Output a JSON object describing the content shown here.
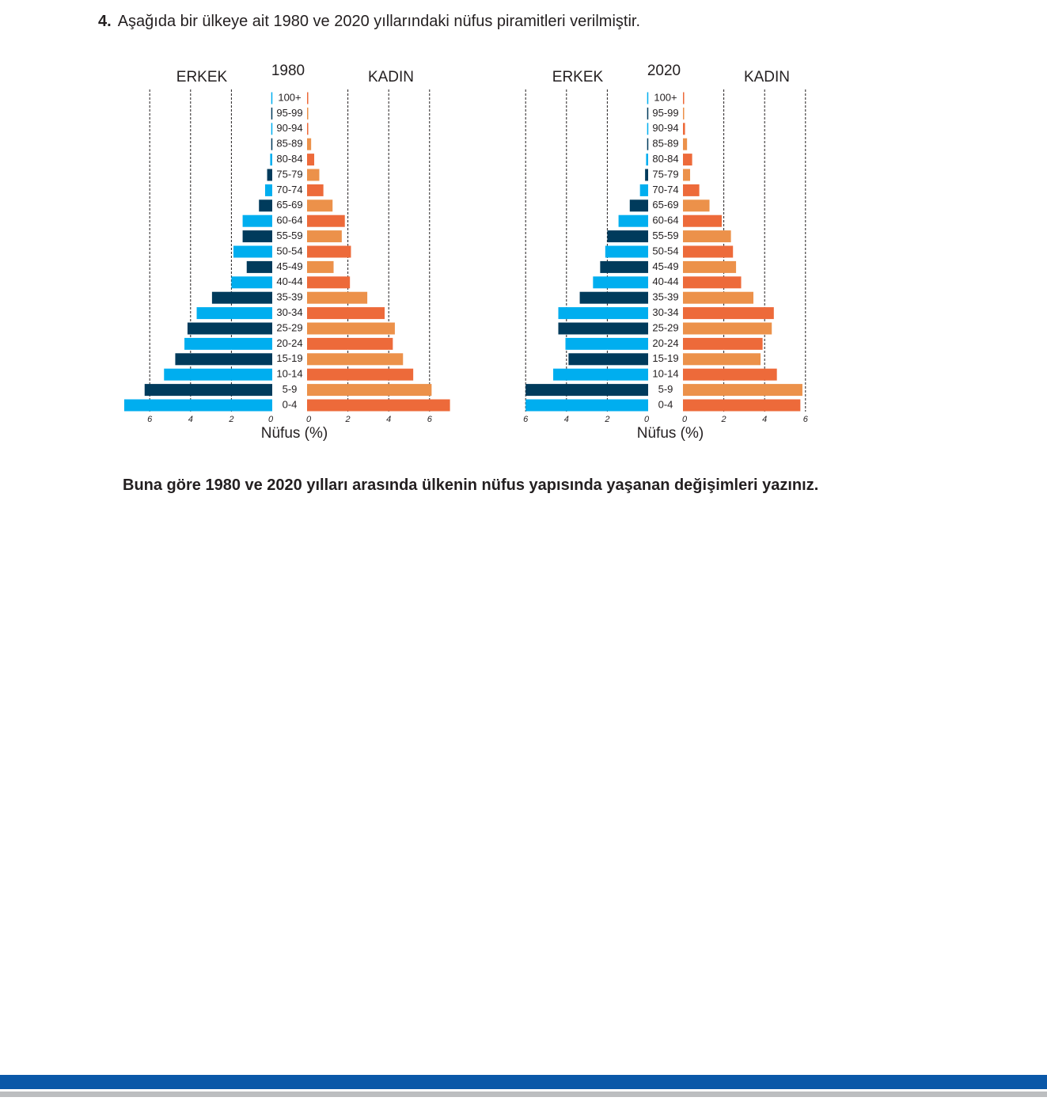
{
  "header": {
    "number": "4.",
    "text": "Aşağıda bir ülkeye ait 1980 ve 2020 yıllarındaki nüfus piramitleri verilmiştir."
  },
  "chart_data": [
    {
      "type": "pyramid",
      "title": "1980",
      "xlabel": "Nüfus (%)",
      "categories": [
        "100+",
        "95-99",
        "90-94",
        "85-89",
        "80-84",
        "75-79",
        "70-74",
        "65-69",
        "60-64",
        "55-59",
        "50-54",
        "45-49",
        "40-44",
        "35-39",
        "30-34",
        "25-29",
        "20-24",
        "15-19",
        "10-14",
        "5-9",
        "0-4"
      ],
      "series": [
        {
          "name": "ERKEK",
          "colors": [
            "#00aeef",
            "#003b5c"
          ],
          "values": [
            0.05,
            0.05,
            0.05,
            0.05,
            0.1,
            0.25,
            0.35,
            0.65,
            1.45,
            1.45,
            1.9,
            1.25,
            2.0,
            2.95,
            3.7,
            4.15,
            4.3,
            4.75,
            5.3,
            6.25,
            7.25
          ]
        },
        {
          "name": "KADIN",
          "colors": [
            "#ed6a3a",
            "#ec914a"
          ],
          "values": [
            0.05,
            0.05,
            0.05,
            0.2,
            0.35,
            0.6,
            0.8,
            1.25,
            1.85,
            1.7,
            2.15,
            1.3,
            2.1,
            2.95,
            3.8,
            4.3,
            4.2,
            4.7,
            5.2,
            6.1,
            7.0
          ]
        }
      ],
      "xlim": [
        0,
        7.5
      ],
      "xticks": [
        0,
        2,
        4,
        6
      ],
      "grid": true
    },
    {
      "type": "pyramid",
      "title": "2020",
      "xlabel": "Nüfus (%)",
      "categories": [
        "100+",
        "95-99",
        "90-94",
        "85-89",
        "80-84",
        "75-79",
        "70-74",
        "65-69",
        "60-64",
        "55-59",
        "50-54",
        "45-49",
        "40-44",
        "35-39",
        "30-34",
        "25-29",
        "20-24",
        "15-19",
        "10-14",
        "5-9",
        "0-4"
      ],
      "series": [
        {
          "name": "ERKEK",
          "colors": [
            "#00aeef",
            "#003b5c"
          ],
          "values": [
            0.05,
            0.05,
            0.05,
            0.05,
            0.1,
            0.15,
            0.4,
            0.9,
            1.45,
            2.0,
            2.1,
            2.35,
            2.7,
            3.35,
            4.4,
            4.4,
            4.05,
            3.9,
            4.65,
            6.0,
            6.0
          ]
        },
        {
          "name": "KADIN",
          "colors": [
            "#ed6a3a",
            "#ec914a"
          ],
          "values": [
            0.05,
            0.05,
            0.1,
            0.2,
            0.45,
            0.35,
            0.8,
            1.3,
            1.9,
            2.35,
            2.45,
            2.6,
            2.85,
            3.45,
            4.45,
            4.35,
            3.9,
            3.8,
            4.6,
            5.85,
            5.75
          ]
        }
      ],
      "xlim": [
        0,
        7.5
      ],
      "xticks": [
        0,
        2,
        4,
        6
      ],
      "grid": true
    }
  ],
  "question": "Buna göre 1980 ve 2020 yılları arasında ülkenin nüfus yapısında yaşanan değişimleri yazınız."
}
